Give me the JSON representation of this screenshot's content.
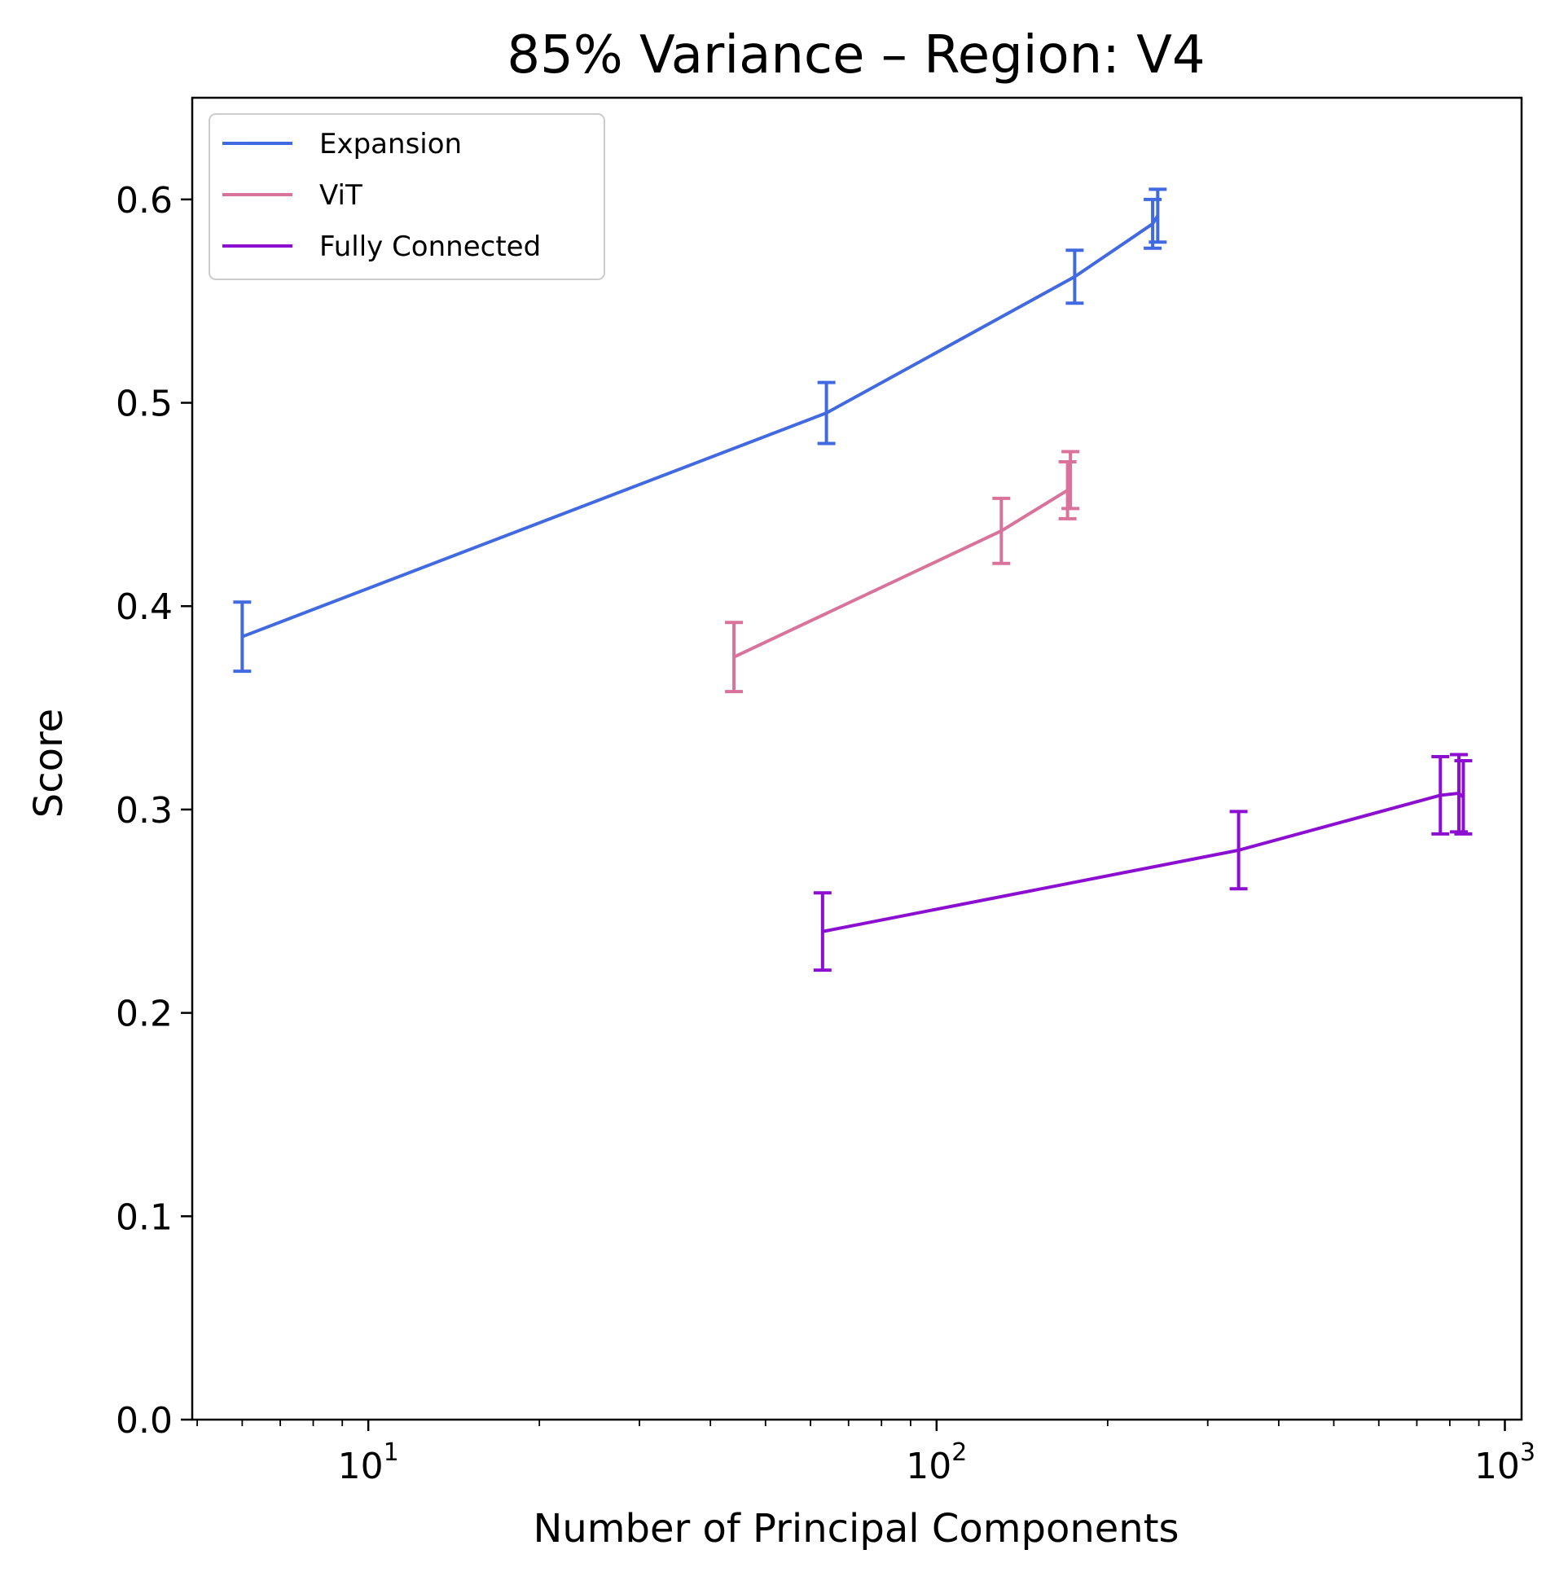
{
  "chart_data": {
    "type": "line",
    "title": "85% Variance – Region: V4",
    "xlabel": "Number of Principal Components",
    "ylabel": "Score",
    "xscale": "log",
    "xlim": [
      4.9,
      1070
    ],
    "ylim": [
      0.0,
      0.65
    ],
    "x_ticks": [
      {
        "value": 10,
        "base": "10",
        "exp": "1"
      },
      {
        "value": 100,
        "base": "10",
        "exp": "2"
      },
      {
        "value": 1000,
        "base": "10",
        "exp": "3"
      }
    ],
    "y_ticks": [
      "0.0",
      "0.1",
      "0.2",
      "0.3",
      "0.4",
      "0.5",
      "0.6"
    ],
    "grid": false,
    "legend_position": "top-left",
    "series": [
      {
        "name": "Expansion",
        "color": "#4169e1",
        "points": [
          {
            "x": 6,
            "y": 0.385,
            "err": 0.017
          },
          {
            "x": 64,
            "y": 0.495,
            "err": 0.015
          },
          {
            "x": 175,
            "y": 0.562,
            "err": 0.013
          },
          {
            "x": 240,
            "y": 0.588,
            "err": 0.012
          },
          {
            "x": 245,
            "y": 0.592,
            "err": 0.013
          }
        ]
      },
      {
        "name": "ViT",
        "color": "#d9739b",
        "points": [
          {
            "x": 44,
            "y": 0.375,
            "err": 0.017
          },
          {
            "x": 130,
            "y": 0.437,
            "err": 0.016
          },
          {
            "x": 170,
            "y": 0.457,
            "err": 0.014
          },
          {
            "x": 172,
            "y": 0.462,
            "err": 0.014
          }
        ]
      },
      {
        "name": "Fully Connected",
        "color": "#8c0fd1",
        "points": [
          {
            "x": 63,
            "y": 0.24,
            "err": 0.019
          },
          {
            "x": 340,
            "y": 0.28,
            "err": 0.019
          },
          {
            "x": 770,
            "y": 0.307,
            "err": 0.019
          },
          {
            "x": 830,
            "y": 0.308,
            "err": 0.019
          },
          {
            "x": 845,
            "y": 0.306,
            "err": 0.018
          }
        ]
      }
    ]
  }
}
